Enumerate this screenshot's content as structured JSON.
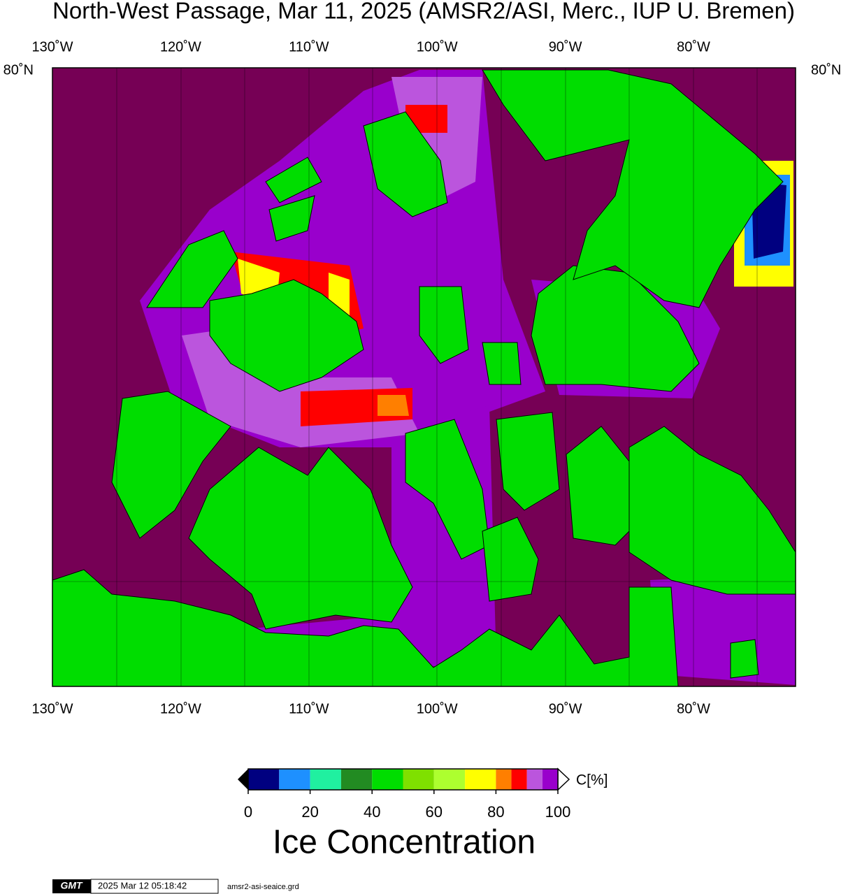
{
  "title": "North-West Passage, Mar 11, 2025 (AMSR2/ASI, Merc., IUP U. Bremen)",
  "map": {
    "lon_labels_top": [
      "130˚W",
      "120˚W",
      "110˚W",
      "100˚W",
      "90˚W",
      "80˚W"
    ],
    "lon_labels_bottom": [
      "130˚W",
      "120˚W",
      "110˚W",
      "100˚W",
      "90˚W",
      "80˚W"
    ],
    "lat_label_left": "80˚N",
    "lat_label_right": "80˚N"
  },
  "colorbar": {
    "bins": [
      0,
      10,
      20,
      30,
      40,
      50,
      60,
      70,
      80,
      85,
      90,
      95,
      100
    ],
    "colors": [
      "#000080",
      "#1e90ff",
      "#20f0a0",
      "#228b22",
      "#00dd00",
      "#7fe000",
      "#adff2f",
      "#ffff00",
      "#ff7f00",
      "#ff0000",
      "#bb55dd",
      "#9900cc"
    ],
    "ticks": [
      0,
      20,
      40,
      60,
      80,
      100
    ],
    "unit": "C[%]",
    "label": "Ice Concentration"
  },
  "footer": {
    "logo": "GMT",
    "timestamp": "2025 Mar 12 05:18:42",
    "file": "amsr2-asi-seaice.grd"
  }
}
